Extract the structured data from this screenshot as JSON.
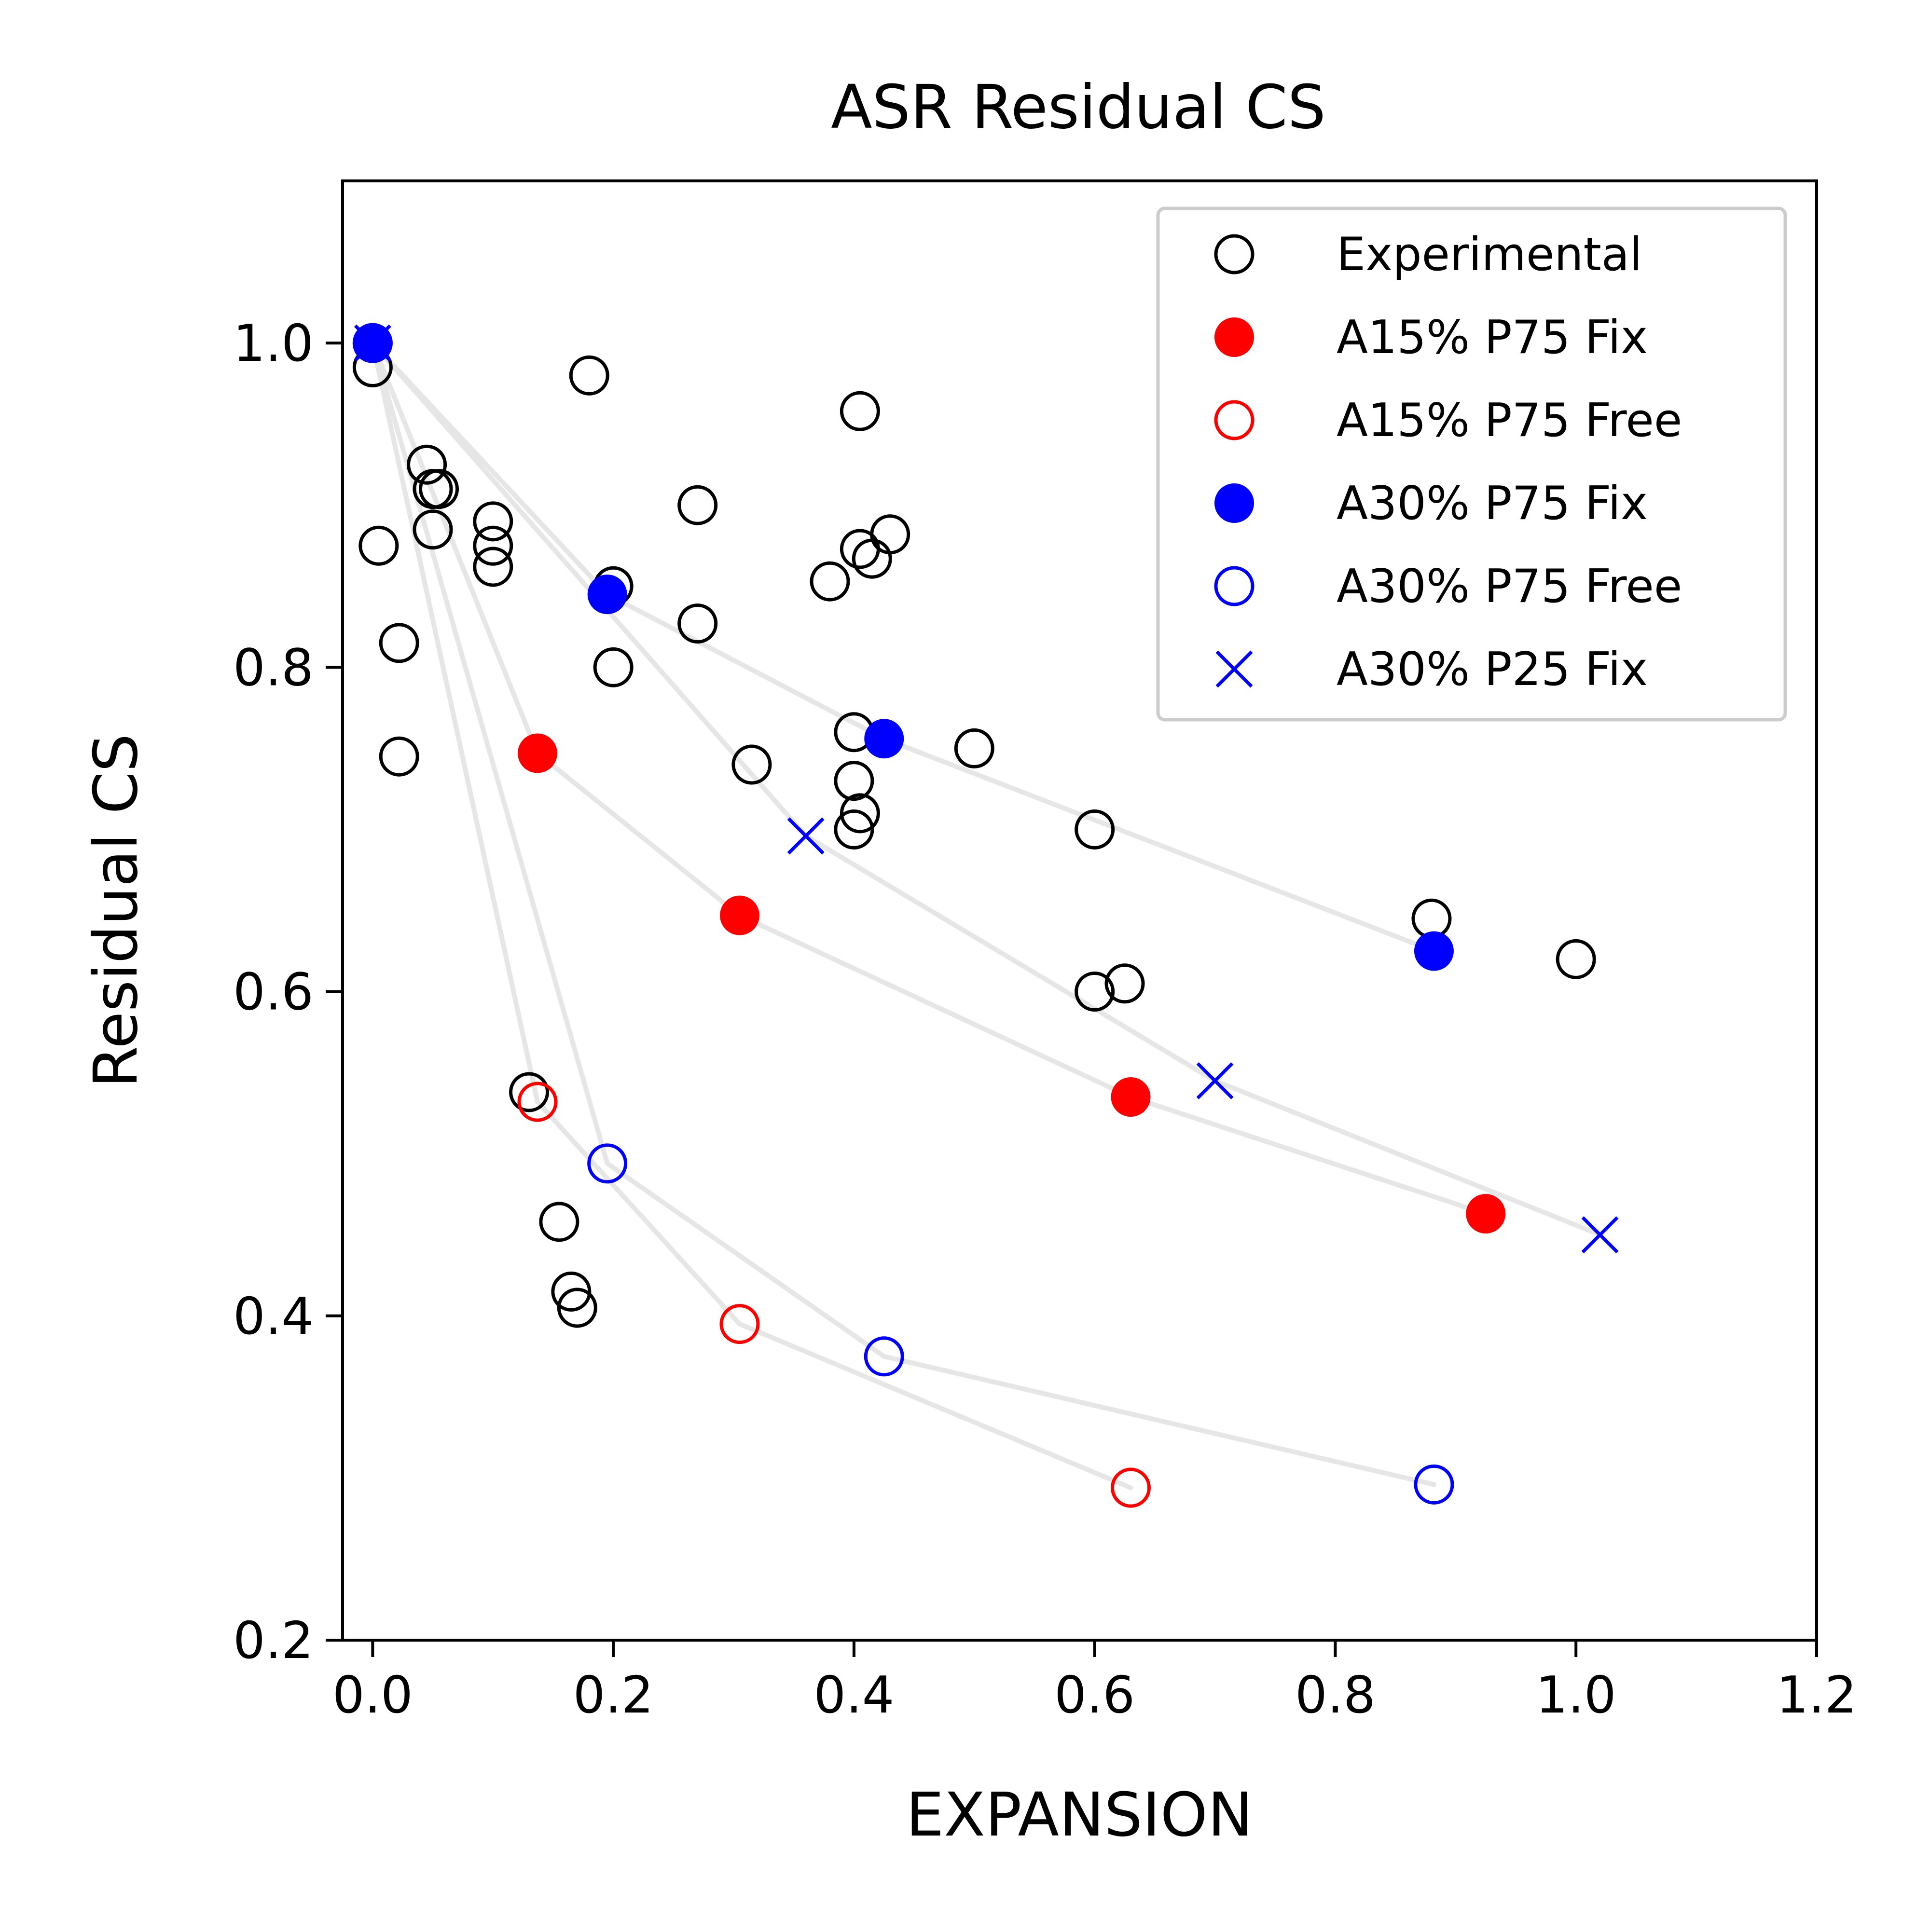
{
  "chart_data": {
    "type": "scatter",
    "title": "ASR Residual CS",
    "xlabel": "EXPANSION",
    "ylabel": "Residual CS",
    "xlim": [
      -0.025,
      1.2
    ],
    "ylim": [
      0.2,
      1.1
    ],
    "xticks": [
      0.0,
      0.2,
      0.4,
      0.6,
      0.8,
      1.0,
      1.2
    ],
    "xtick_labels": [
      "0.0",
      "0.2",
      "0.4",
      "0.6",
      "0.8",
      "1.0",
      "1.2"
    ],
    "yticks": [
      0.2,
      0.4,
      0.6,
      0.8,
      1.0
    ],
    "ytick_labels": [
      "0.2",
      "0.4",
      "0.6",
      "0.8",
      "1.0"
    ],
    "grid": false,
    "legend_position": "top-right",
    "connector_color": "#e6e6e6",
    "series": [
      {
        "name": "Experimental",
        "marker": "open-circle",
        "color": "#000000",
        "connected": false,
        "points": [
          [
            0.0,
            0.985
          ],
          [
            0.005,
            0.875
          ],
          [
            0.022,
            0.815
          ],
          [
            0.022,
            0.745
          ],
          [
            0.045,
            0.925
          ],
          [
            0.05,
            0.91
          ],
          [
            0.055,
            0.91
          ],
          [
            0.05,
            0.885
          ],
          [
            0.1,
            0.89
          ],
          [
            0.1,
            0.875
          ],
          [
            0.1,
            0.862
          ],
          [
            0.18,
            0.98
          ],
          [
            0.2,
            0.85
          ],
          [
            0.2,
            0.8
          ],
          [
            0.27,
            0.9
          ],
          [
            0.27,
            0.827
          ],
          [
            0.315,
            0.74
          ],
          [
            0.38,
            0.853
          ],
          [
            0.4,
            0.76
          ],
          [
            0.4,
            0.73
          ],
          [
            0.405,
            0.71
          ],
          [
            0.4,
            0.7
          ],
          [
            0.405,
            0.958
          ],
          [
            0.405,
            0.873
          ],
          [
            0.415,
            0.867
          ],
          [
            0.43,
            0.882
          ],
          [
            0.5,
            0.75
          ],
          [
            0.6,
            0.7
          ],
          [
            0.6,
            0.6
          ],
          [
            0.625,
            0.605
          ],
          [
            0.88,
            0.645
          ],
          [
            1.0,
            0.62
          ],
          [
            0.13,
            0.538
          ],
          [
            0.155,
            0.458
          ],
          [
            0.165,
            0.415
          ],
          [
            0.17,
            0.405
          ]
        ]
      },
      {
        "name": "A15% P75 Fix",
        "marker": "filled-circle",
        "color": "#ff0000",
        "connected": true,
        "points": [
          [
            0.0,
            1.0
          ],
          [
            0.137,
            0.747
          ],
          [
            0.305,
            0.647
          ],
          [
            0.63,
            0.535
          ],
          [
            0.925,
            0.463
          ]
        ]
      },
      {
        "name": "A15% P75 Free",
        "marker": "open-circle",
        "color": "#ff0000",
        "connected": true,
        "points": [
          [
            0.0,
            1.0
          ],
          [
            0.137,
            0.532
          ],
          [
            0.305,
            0.395
          ],
          [
            0.63,
            0.294
          ]
        ]
      },
      {
        "name": "A30% P75 Fix",
        "marker": "filled-circle",
        "color": "#0000ff",
        "connected": true,
        "points": [
          [
            0.0,
            1.0
          ],
          [
            0.195,
            0.845
          ],
          [
            0.425,
            0.756
          ],
          [
            0.882,
            0.625
          ]
        ]
      },
      {
        "name": "A30% P75 Free",
        "marker": "open-circle",
        "color": "#0000ff",
        "connected": true,
        "points": [
          [
            0.0,
            1.0
          ],
          [
            0.195,
            0.494
          ],
          [
            0.425,
            0.375
          ],
          [
            0.882,
            0.296
          ]
        ]
      },
      {
        "name": "A30% P25 Fix",
        "marker": "x",
        "color": "#0000ff",
        "connected": true,
        "points": [
          [
            0.0,
            1.0
          ],
          [
            0.36,
            0.696
          ],
          [
            0.7,
            0.545
          ],
          [
            1.02,
            0.45
          ]
        ]
      }
    ]
  }
}
